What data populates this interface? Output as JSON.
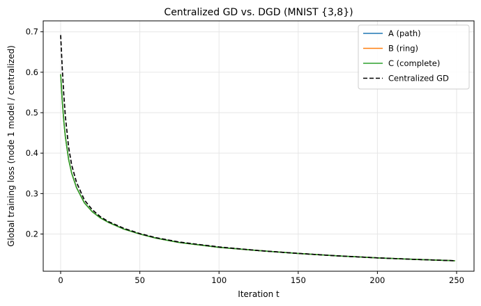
{
  "chart_data": {
    "type": "line",
    "title": "Centralized GD vs. DGD (MNIST {3,8})",
    "xlabel": "Iteration t",
    "ylabel": "Global training loss (node 1 model / centralized)",
    "xlim": [
      -11,
      261
    ],
    "ylim": [
      0.108,
      0.727
    ],
    "xticks": [
      0,
      50,
      100,
      150,
      200,
      250
    ],
    "yticks": [
      0.2,
      0.3,
      0.4,
      0.5,
      0.6,
      0.7
    ],
    "xtick_labels": [
      "0",
      "50",
      "100",
      "150",
      "200",
      "250"
    ],
    "ytick_labels": [
      "0.2",
      "0.3",
      "0.4",
      "0.5",
      "0.6",
      "0.7"
    ],
    "grid": true,
    "legend_position": "top-right",
    "x": [
      0,
      1,
      2,
      3,
      5,
      7,
      10,
      15,
      20,
      25,
      30,
      40,
      50,
      60,
      75,
      100,
      125,
      150,
      175,
      200,
      225,
      249
    ],
    "series": [
      {
        "name": "A (path)",
        "color": "#1f77b4",
        "style": "solid",
        "values": [
          0.595,
          0.53,
          0.48,
          0.44,
          0.385,
          0.35,
          0.315,
          0.277,
          0.255,
          0.24,
          0.229,
          0.212,
          0.2,
          0.19,
          0.179,
          0.167,
          0.159,
          0.152,
          0.146,
          0.141,
          0.137,
          0.134
        ]
      },
      {
        "name": "B (ring)",
        "color": "#ff7f0e",
        "style": "solid",
        "values": [
          0.595,
          0.53,
          0.48,
          0.44,
          0.385,
          0.35,
          0.315,
          0.277,
          0.255,
          0.24,
          0.229,
          0.212,
          0.2,
          0.19,
          0.179,
          0.167,
          0.159,
          0.152,
          0.146,
          0.141,
          0.137,
          0.134
        ]
      },
      {
        "name": "C (complete)",
        "color": "#2ca02c",
        "style": "solid",
        "values": [
          0.595,
          0.53,
          0.48,
          0.44,
          0.385,
          0.35,
          0.315,
          0.277,
          0.255,
          0.24,
          0.229,
          0.212,
          0.2,
          0.19,
          0.179,
          0.167,
          0.159,
          0.152,
          0.146,
          0.141,
          0.137,
          0.134
        ]
      },
      {
        "name": "Centralized GD",
        "color": "#000000",
        "style": "dashed",
        "values": [
          0.692,
          0.61,
          0.545,
          0.49,
          0.415,
          0.37,
          0.328,
          0.284,
          0.26,
          0.243,
          0.231,
          0.214,
          0.201,
          0.191,
          0.18,
          0.168,
          0.159,
          0.152,
          0.146,
          0.141,
          0.137,
          0.134
        ]
      }
    ]
  }
}
